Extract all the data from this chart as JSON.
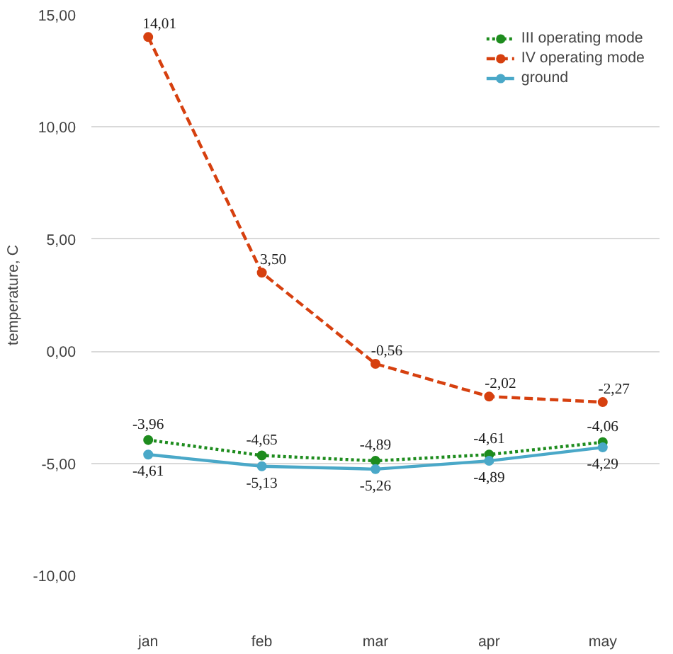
{
  "chart_data": {
    "type": "line",
    "ylabel": "temperature, C",
    "categories": [
      "jan",
      "feb",
      "mar",
      "apr",
      "may"
    ],
    "series": [
      {
        "name": "III operating mode",
        "color": "#1e8c1e",
        "line_style": "dotted",
        "values": [
          -3.96,
          -4.65,
          -4.89,
          -4.61,
          -4.06
        ],
        "value_labels": [
          "-3,96",
          "-4,65",
          "-4,89",
          "-4,61",
          "-4,06"
        ]
      },
      {
        "name": "IV operating mode",
        "color": "#d6400f",
        "line_style": "dashed",
        "values": [
          14.01,
          3.5,
          -0.56,
          -2.02,
          -2.27
        ],
        "value_labels": [
          "14,01",
          "3,50",
          "-0,56",
          "-2,02",
          "-2,27"
        ]
      },
      {
        "name": "ground",
        "color": "#4aa8c8",
        "line_style": "solid",
        "values": [
          -4.61,
          -5.13,
          -5.26,
          -4.89,
          -4.29
        ],
        "value_labels": [
          "-4,61",
          "-5,13",
          "-5,26",
          "-4,89",
          "-4,29"
        ]
      }
    ],
    "ylim": [
      -10,
      15
    ],
    "yticks": [
      {
        "value": -10,
        "label": "-10,00"
      },
      {
        "value": -5,
        "label": "-5,00"
      },
      {
        "value": 0,
        "label": "0,00"
      },
      {
        "value": 5,
        "label": "5,00"
      },
      {
        "value": 10,
        "label": "10,00"
      },
      {
        "value": 15,
        "label": "15,00"
      }
    ],
    "grid": "y",
    "legend": "top right",
    "marker": "circle"
  }
}
